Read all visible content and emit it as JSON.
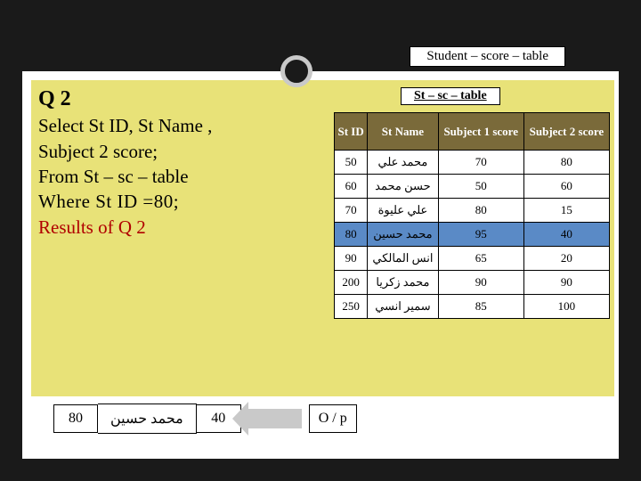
{
  "topLabel": "Student – score – table",
  "tableLabel": "St – sc – table",
  "query": {
    "q2": "Q 2",
    "line1": " Select  St ID, St Name ,",
    "line2": "Subject 2 score;",
    "line3": "From St – sc – table",
    "line4": "Where St ID =80;",
    "results": "Results of Q 2"
  },
  "headers": [
    "St ID",
    "St Name",
    "Subject 1 score",
    "Subject 2 score"
  ],
  "rows": [
    {
      "id": "50",
      "name": "محمد علي",
      "s1": "70",
      "s2": "80",
      "hl": false
    },
    {
      "id": "60",
      "name": "حسن محمد",
      "s1": "50",
      "s2": "60",
      "hl": false
    },
    {
      "id": "70",
      "name": "علي عليوة",
      "s1": "80",
      "s2": "15",
      "hl": false
    },
    {
      "id": "80",
      "name": "محمد حسين",
      "s1": "95",
      "s2": "40",
      "hl": true
    },
    {
      "id": "90",
      "name": "انس المالكي",
      "s1": "65",
      "s2": "20",
      "hl": false
    },
    {
      "id": "200",
      "name": "محمد زكريا",
      "s1": "90",
      "s2": "90",
      "hl": false
    },
    {
      "id": "250",
      "name": "سمير انسي",
      "s1": "85",
      "s2": "100",
      "hl": false
    }
  ],
  "result": {
    "c1": "80",
    "c2": "محمد حسين",
    "c3": "40"
  },
  "op": "O / p"
}
